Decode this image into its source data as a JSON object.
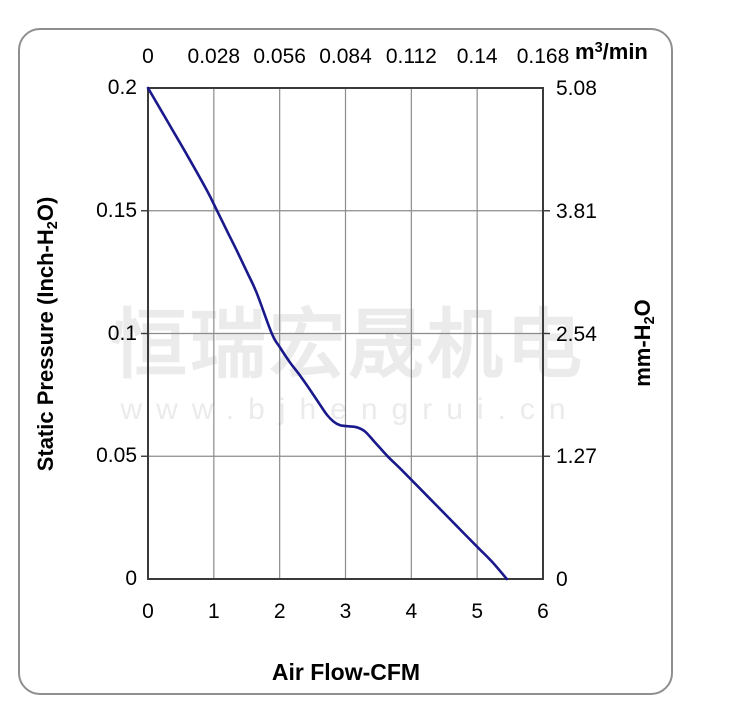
{
  "page": {
    "background": "#ffffff",
    "frame_border_color": "#8f8f8f"
  },
  "watermark": {
    "cjk": "恒瑞宏晟机电",
    "url": "www.bjhengrui.cn",
    "color": "#ebebeb"
  },
  "chart_data": {
    "type": "line",
    "title": "",
    "x_bottom": {
      "label": "Air Flow-CFM",
      "ticks": [
        "0",
        "1",
        "2",
        "3",
        "4",
        "5",
        "6"
      ],
      "range": [
        0,
        6
      ]
    },
    "x_top": {
      "unit_parts": {
        "prefix": "m",
        "superscript": "3",
        "suffix": "/min"
      },
      "ticks": [
        "0",
        "0.028",
        "0.056",
        "0.084",
        "0.112",
        "0.14",
        "0.168"
      ]
    },
    "y_left": {
      "label_parts": {
        "pre": "Static Pressure (Inch-H",
        "sub": "2",
        "post": "O)"
      },
      "ticks": [
        "0.2",
        "0.15",
        "0.1",
        "0.05",
        "0"
      ],
      "tick_values": [
        0.2,
        0.15,
        0.1,
        0.05,
        0
      ],
      "range": [
        0,
        0.2
      ]
    },
    "y_right": {
      "label_parts": {
        "pre": "mm-H",
        "sub": "2",
        "post": "O"
      },
      "ticks": [
        "5.08",
        "3.81",
        "2.54",
        "1.27",
        "0"
      ]
    },
    "grid": {
      "x_lines": [
        1,
        2,
        3,
        4,
        5
      ],
      "y_lines": [
        0.05,
        0.1,
        0.15
      ],
      "grid_color": "#8c8c8c",
      "axis_color": "#3a3a3a"
    },
    "series": [
      {
        "name": "static-pressure-vs-airflow",
        "color": "#19198c",
        "stroke_width": 2.6,
        "points": [
          [
            0.0,
            0.2
          ],
          [
            0.3,
            0.1862
          ],
          [
            0.6,
            0.1724
          ],
          [
            0.9,
            0.158
          ],
          [
            1.05,
            0.15
          ],
          [
            1.2,
            0.1418
          ],
          [
            1.35,
            0.1337
          ],
          [
            1.5,
            0.1252
          ],
          [
            1.65,
            0.1166
          ],
          [
            1.88,
            0.1
          ],
          [
            2.0,
            0.0945
          ],
          [
            2.15,
            0.0885
          ],
          [
            2.3,
            0.0832
          ],
          [
            2.45,
            0.0775
          ],
          [
            2.6,
            0.0715
          ],
          [
            2.72,
            0.0668
          ],
          [
            2.82,
            0.0641
          ],
          [
            2.92,
            0.0626
          ],
          [
            3.05,
            0.0622
          ],
          [
            3.18,
            0.0617
          ],
          [
            3.3,
            0.06
          ],
          [
            3.45,
            0.0556
          ],
          [
            3.64,
            0.05
          ],
          [
            3.85,
            0.0445
          ],
          [
            4.1,
            0.0377
          ],
          [
            4.4,
            0.0295
          ],
          [
            4.7,
            0.0213
          ],
          [
            5.0,
            0.0131
          ],
          [
            5.22,
            0.0072
          ],
          [
            5.45,
            0.0
          ]
        ]
      }
    ],
    "legend": null,
    "grid_on": true
  }
}
